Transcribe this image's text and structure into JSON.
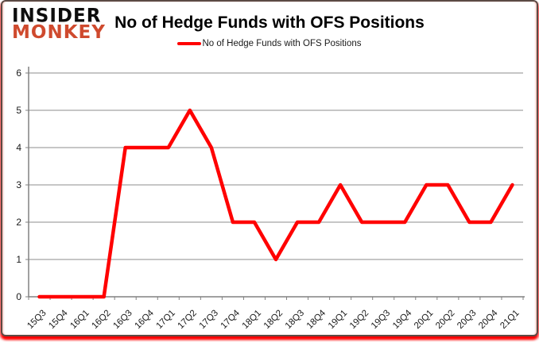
{
  "logo": {
    "line1": "INSIDER",
    "line2": "MONKEY",
    "color_line1": "#0d0d0d",
    "color_line2": "#cf4a2e"
  },
  "header": {
    "title": "No of Hedge Funds with OFS Positions"
  },
  "legend": {
    "label": "No of Hedge Funds with OFS Positions",
    "line_color": "#ff0000"
  },
  "chart_data": {
    "type": "line",
    "title": "No of Hedge Funds with OFS Positions",
    "categories": [
      "15Q3",
      "15Q4",
      "16Q1",
      "16Q2",
      "16Q3",
      "16Q4",
      "17Q1",
      "17Q2",
      "17Q3",
      "17Q4",
      "18Q1",
      "18Q2",
      "18Q3",
      "18Q4",
      "19Q1",
      "19Q2",
      "19Q3",
      "19Q4",
      "20Q1",
      "20Q2",
      "20Q3",
      "20Q4",
      "21Q1"
    ],
    "series": [
      {
        "name": "No of Hedge Funds with OFS Positions",
        "color": "#ff0000",
        "values": [
          0,
          0,
          0,
          0,
          4,
          4,
          4,
          5,
          4,
          2,
          2,
          1,
          2,
          2,
          3,
          2,
          2,
          2,
          3,
          3,
          2,
          2,
          3
        ]
      }
    ],
    "xlabel": "",
    "ylabel": "",
    "ylim": [
      0,
      6
    ],
    "yticks": [
      0,
      1,
      2,
      3,
      4,
      5,
      6
    ],
    "grid": true,
    "legend_position": "top",
    "line_width": 4.5
  },
  "colors": {
    "grid": "#8e8e8e",
    "axis": "#808080",
    "tick_text": "#1a1a1a",
    "title_text": "#000000"
  }
}
